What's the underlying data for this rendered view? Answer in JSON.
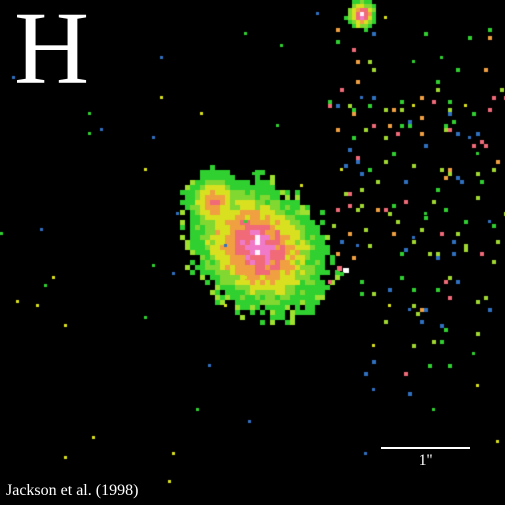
{
  "image": {
    "band_label": "H",
    "scale_label": "1''",
    "credit": "Jackson et al. (1998)"
  },
  "colors": {
    "background": "#000000",
    "core": "#f07ac8",
    "inner": "#f06a78",
    "mid": "#f0a040",
    "outer": "#d8e020",
    "halo": "#30d030",
    "noise_blue": "#3070c0",
    "text": "#ffffff"
  }
}
